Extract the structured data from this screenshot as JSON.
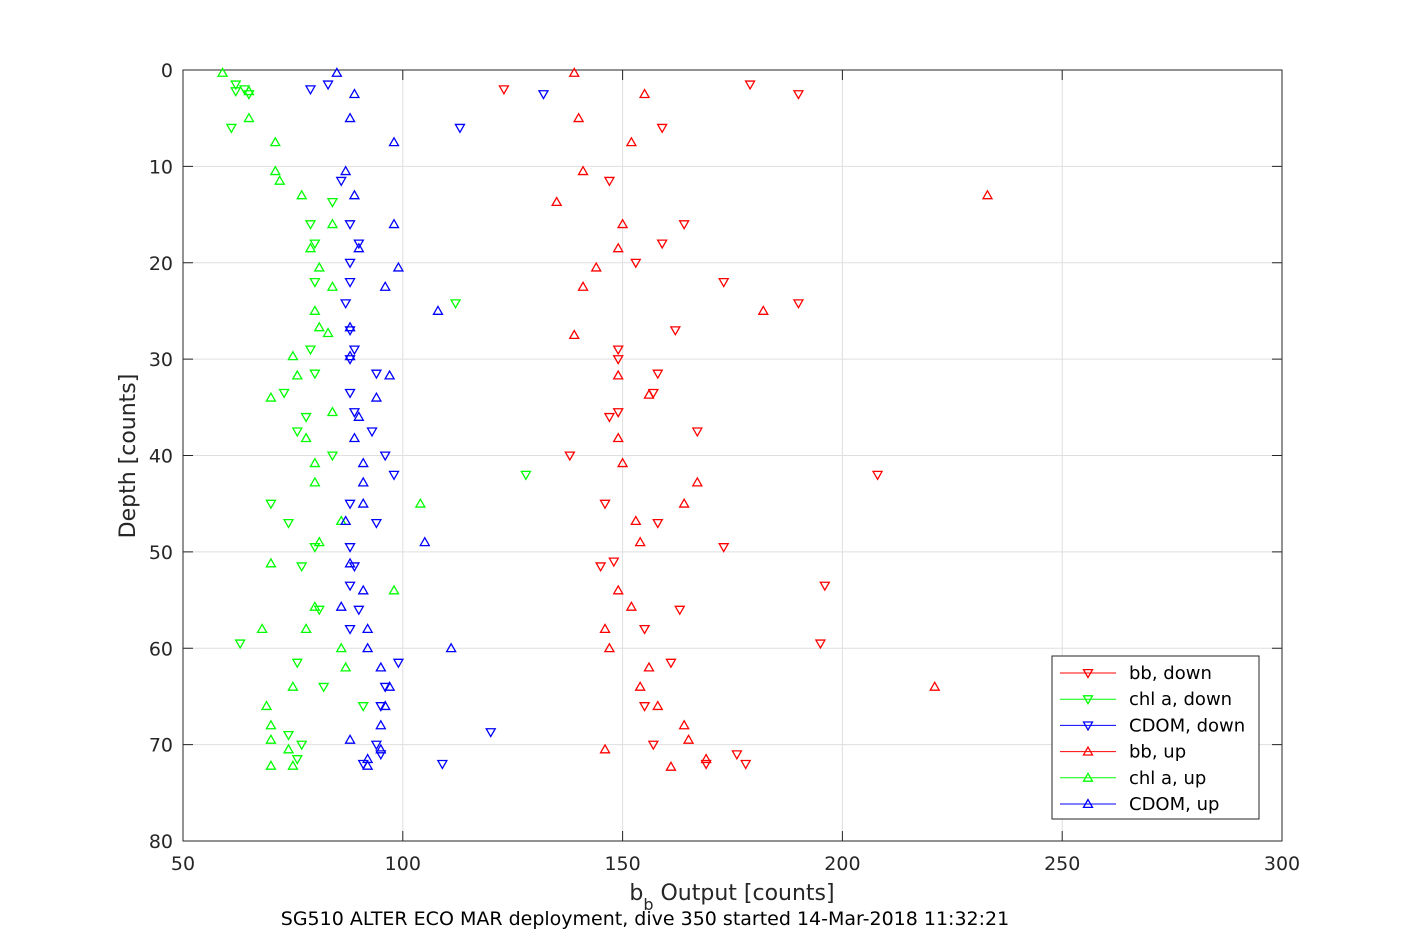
{
  "chart_data": {
    "type": "scatter",
    "title": "SG510 ALTER ECO MAR deployment, dive 350 started 14-Mar-2018 11:32:21",
    "xlabel": {
      "main": "b",
      "subscript": "b",
      "rest": " Output [counts]"
    },
    "ylabel": "Depth [counts]",
    "xlim": [
      50,
      300
    ],
    "ylim": [
      0,
      80
    ],
    "y_reversed": true,
    "x_ticks": [
      50,
      100,
      150,
      200,
      250,
      300
    ],
    "y_ticks": [
      0,
      10,
      20,
      30,
      40,
      50,
      60,
      70,
      80
    ],
    "grid": true,
    "legend_position": "lower-right",
    "series": [
      {
        "name": "bb, down",
        "color": "#ff0000",
        "marker": "triangle-down",
        "points": [
          [
            123,
            2
          ],
          [
            179,
            1.5
          ],
          [
            190,
            2.5
          ],
          [
            159,
            6
          ],
          [
            147,
            11.5
          ],
          [
            164,
            16
          ],
          [
            159,
            18
          ],
          [
            153,
            20
          ],
          [
            173,
            22
          ],
          [
            190,
            24.2
          ],
          [
            162,
            27
          ],
          [
            149,
            29
          ],
          [
            149,
            30
          ],
          [
            158,
            31.5
          ],
          [
            157,
            33.5
          ],
          [
            149,
            35.5
          ],
          [
            147,
            36
          ],
          [
            167,
            37.5
          ],
          [
            138,
            40
          ],
          [
            208,
            42
          ],
          [
            146,
            45
          ],
          [
            158,
            47
          ],
          [
            173,
            49.5
          ],
          [
            145,
            51.5
          ],
          [
            148,
            51
          ],
          [
            196,
            53.5
          ],
          [
            163,
            56
          ],
          [
            155,
            58
          ],
          [
            195,
            59.5
          ],
          [
            161,
            61.5
          ],
          [
            155,
            66
          ],
          [
            157,
            70
          ],
          [
            176,
            71
          ],
          [
            178,
            72
          ],
          [
            169,
            72
          ]
        ]
      },
      {
        "name": "chl a, down",
        "color": "#00ff00",
        "marker": "triangle-down",
        "points": [
          [
            62,
            1.5
          ],
          [
            64,
            2
          ],
          [
            65,
            2.5
          ],
          [
            61,
            6
          ],
          [
            62,
            2.2
          ],
          [
            84,
            13.7
          ],
          [
            79,
            16
          ],
          [
            80,
            18
          ],
          [
            80,
            22
          ],
          [
            79,
            29
          ],
          [
            80,
            31.5
          ],
          [
            73,
            33.5
          ],
          [
            78,
            36
          ],
          [
            76,
            37.5
          ],
          [
            84,
            40
          ],
          [
            70,
            45
          ],
          [
            74,
            47
          ],
          [
            80,
            49.5
          ],
          [
            77,
            51.5
          ],
          [
            81,
            56
          ],
          [
            63,
            59.5
          ],
          [
            76,
            61.5
          ],
          [
            82,
            64
          ],
          [
            91,
            66
          ],
          [
            74,
            69
          ],
          [
            77,
            70
          ],
          [
            76,
            71.5
          ],
          [
            112,
            24.2
          ],
          [
            128,
            42
          ]
        ]
      },
      {
        "name": "CDOM, down",
        "color": "#0000ff",
        "marker": "triangle-down",
        "points": [
          [
            83,
            1.5
          ],
          [
            79,
            2
          ],
          [
            132,
            2.5
          ],
          [
            113,
            6
          ],
          [
            86,
            11.5
          ],
          [
            88,
            16
          ],
          [
            90,
            18
          ],
          [
            88,
            20
          ],
          [
            88,
            22
          ],
          [
            87,
            24.2
          ],
          [
            88,
            27
          ],
          [
            89,
            29
          ],
          [
            88,
            30
          ],
          [
            94,
            31.5
          ],
          [
            88,
            33.5
          ],
          [
            89,
            35.5
          ],
          [
            93,
            37.5
          ],
          [
            96,
            40
          ],
          [
            98,
            42
          ],
          [
            88,
            45
          ],
          [
            94,
            47
          ],
          [
            88,
            49.5
          ],
          [
            89,
            51.5
          ],
          [
            88,
            53.5
          ],
          [
            90,
            56
          ],
          [
            88,
            58
          ],
          [
            99,
            61.5
          ],
          [
            96,
            64
          ],
          [
            95,
            66
          ],
          [
            120,
            68.7
          ],
          [
            94,
            70
          ],
          [
            95,
            71
          ],
          [
            91,
            72
          ],
          [
            109,
            72
          ]
        ]
      },
      {
        "name": "bb, up",
        "color": "#ff0000",
        "marker": "triangle-up",
        "points": [
          [
            139,
            0.3
          ],
          [
            155,
            2.5
          ],
          [
            140,
            5
          ],
          [
            152,
            7.5
          ],
          [
            141,
            10.5
          ],
          [
            233,
            13
          ],
          [
            135,
            13.7
          ],
          [
            150,
            16
          ],
          [
            149,
            18.5
          ],
          [
            144,
            20.5
          ],
          [
            141,
            22.5
          ],
          [
            182,
            25
          ],
          [
            139,
            27.5
          ],
          [
            149,
            31.7
          ],
          [
            156,
            33.7
          ],
          [
            149,
            38.2
          ],
          [
            150,
            40.8
          ],
          [
            167,
            42.8
          ],
          [
            164,
            45
          ],
          [
            153,
            46.8
          ],
          [
            154,
            49
          ],
          [
            149,
            54
          ],
          [
            152,
            55.7
          ],
          [
            146,
            58
          ],
          [
            147,
            60
          ],
          [
            156,
            62
          ],
          [
            221,
            64
          ],
          [
            154,
            64
          ],
          [
            158,
            66
          ],
          [
            164,
            68
          ],
          [
            165,
            69.5
          ],
          [
            146,
            70.5
          ],
          [
            169,
            71.5
          ],
          [
            161,
            72.3
          ]
        ]
      },
      {
        "name": "chl a, up",
        "color": "#00ff00",
        "marker": "triangle-up",
        "points": [
          [
            59,
            0.3
          ],
          [
            65,
            2.2
          ],
          [
            65,
            5
          ],
          [
            71,
            7.5
          ],
          [
            71,
            10.5
          ],
          [
            72,
            11.5
          ],
          [
            77,
            13
          ],
          [
            84,
            16
          ],
          [
            79,
            18.5
          ],
          [
            81,
            20.5
          ],
          [
            84,
            22.5
          ],
          [
            80,
            25
          ],
          [
            81,
            26.7
          ],
          [
            83,
            27.3
          ],
          [
            75,
            29.7
          ],
          [
            76,
            31.7
          ],
          [
            70,
            34
          ],
          [
            84,
            35.5
          ],
          [
            78,
            38.2
          ],
          [
            80,
            40.8
          ],
          [
            80,
            42.8
          ],
          [
            104,
            45
          ],
          [
            86,
            46.8
          ],
          [
            81,
            49
          ],
          [
            70,
            51.2
          ],
          [
            98,
            54
          ],
          [
            80,
            55.7
          ],
          [
            68,
            58
          ],
          [
            78,
            58
          ],
          [
            86,
            60
          ],
          [
            87,
            62
          ],
          [
            75,
            64
          ],
          [
            69,
            66
          ],
          [
            70,
            68
          ],
          [
            70,
            69.5
          ],
          [
            74,
            70.5
          ],
          [
            70,
            72.2
          ],
          [
            75,
            72.2
          ]
        ]
      },
      {
        "name": "CDOM, up",
        "color": "#0000ff",
        "marker": "triangle-up",
        "points": [
          [
            85,
            0.3
          ],
          [
            89,
            2.5
          ],
          [
            88,
            5
          ],
          [
            98,
            7.5
          ],
          [
            87,
            10.5
          ],
          [
            89,
            13
          ],
          [
            98,
            16
          ],
          [
            90,
            18.5
          ],
          [
            99,
            20.5
          ],
          [
            96,
            22.5
          ],
          [
            108,
            25
          ],
          [
            88,
            26.7
          ],
          [
            88,
            29.7
          ],
          [
            97,
            31.7
          ],
          [
            94,
            34
          ],
          [
            90,
            36
          ],
          [
            89,
            38.2
          ],
          [
            91,
            40.8
          ],
          [
            91,
            42.8
          ],
          [
            91,
            45
          ],
          [
            87,
            46.8
          ],
          [
            105,
            49
          ],
          [
            88,
            51.2
          ],
          [
            91,
            54
          ],
          [
            86,
            55.7
          ],
          [
            92,
            58
          ],
          [
            92,
            60
          ],
          [
            111,
            60
          ],
          [
            95,
            62
          ],
          [
            97,
            64
          ],
          [
            96,
            66
          ],
          [
            95,
            68
          ],
          [
            88,
            69.5
          ],
          [
            95,
            70.5
          ],
          [
            92,
            71.5
          ],
          [
            92,
            72.2
          ]
        ]
      }
    ]
  }
}
